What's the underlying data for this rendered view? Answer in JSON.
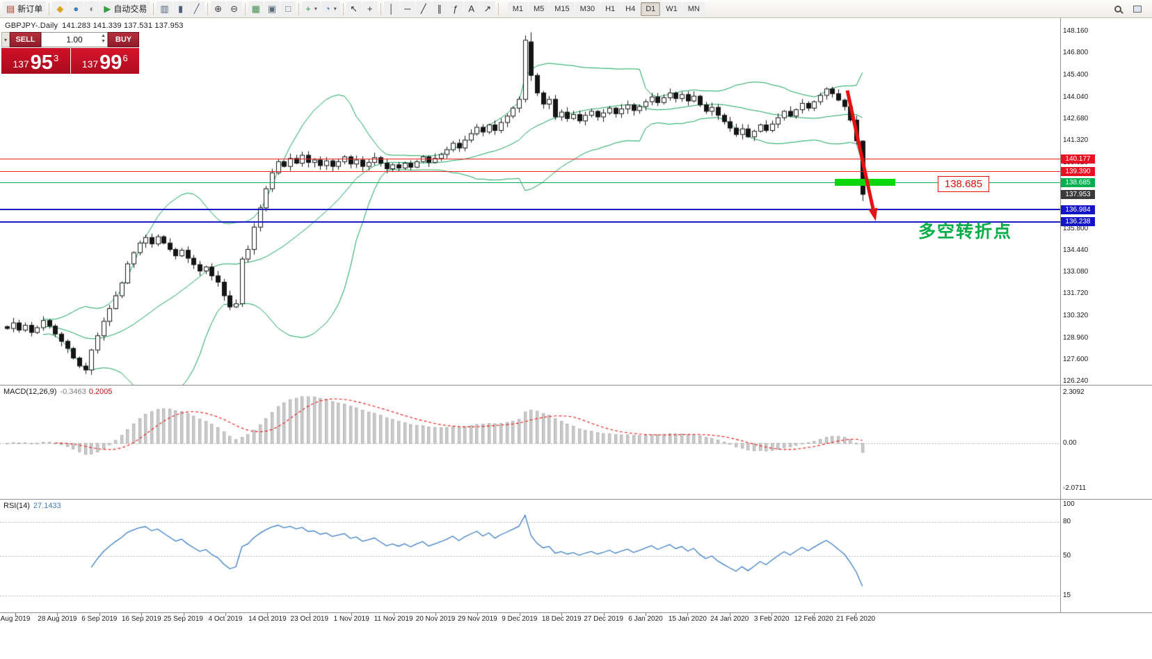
{
  "toolbar": {
    "items": [
      {
        "name": "new-order",
        "label": "新订单",
        "glyph": "▤",
        "color": "#b03a2e"
      },
      {
        "name": "separator"
      },
      {
        "name": "metaeditor",
        "glyph": "◆",
        "color": "#d8a51d"
      },
      {
        "name": "market-watch",
        "glyph": "●",
        "color": "#3f7fbf"
      },
      {
        "name": "data-window",
        "glyph": "◐",
        "color": "#7f7f7f"
      },
      {
        "name": "autotrading",
        "label": "自动交易",
        "glyph": "▶",
        "color": "#2f9e3f"
      },
      {
        "name": "separator"
      },
      {
        "name": "bar-chart",
        "glyph": "▥",
        "color": "#50617a"
      },
      {
        "name": "candlestick-chart",
        "glyph": "▮",
        "color": "#50617a"
      },
      {
        "name": "line-chart",
        "glyph": "╱",
        "color": "#50617a"
      },
      {
        "name": "separator"
      },
      {
        "name": "zoom-in",
        "glyph": "⊕",
        "color": "#3c3c3c"
      },
      {
        "name": "zoom-out",
        "glyph": "⊖",
        "color": "#3c3c3c"
      },
      {
        "name": "separator"
      },
      {
        "name": "tile-windows",
        "glyph": "▦",
        "color": "#3f8f4f"
      },
      {
        "name": "auto-scroll",
        "glyph": "▣",
        "color": "#5a6a7a"
      },
      {
        "name": "chart-shift",
        "glyph": "□",
        "color": "#5a6a7a"
      },
      {
        "name": "separator"
      },
      {
        "name": "new-chart",
        "glyph": "+",
        "color": "#2f8f3f",
        "caret": true
      },
      {
        "name": "chart-profiles",
        "glyph": "◔",
        "color": "#3f7fbf",
        "caret": true
      },
      {
        "name": "separator"
      },
      {
        "name": "cursor",
        "glyph": "↖",
        "color": "#333333"
      },
      {
        "name": "crosshair",
        "glyph": "+",
        "color": "#333333"
      },
      {
        "name": "separator"
      },
      {
        "name": "vertical-line",
        "glyph": "│",
        "color": "#333333"
      },
      {
        "name": "horizontal-line",
        "glyph": "─",
        "color": "#333333"
      },
      {
        "name": "trendline",
        "glyph": "╱",
        "color": "#333333"
      },
      {
        "name": "equidistant-channel",
        "glyph": "∥",
        "color": "#333333"
      },
      {
        "name": "fibonacci",
        "glyph": "ƒ",
        "color": "#333333"
      },
      {
        "name": "text-label",
        "glyph": "A",
        "color": "#333333"
      },
      {
        "name": "arrows-tool",
        "glyph": "↗",
        "color": "#333333"
      },
      {
        "name": "separator"
      }
    ],
    "timeframes": [
      "M1",
      "M5",
      "M15",
      "M30",
      "H1",
      "H4",
      "D1",
      "W1",
      "MN"
    ],
    "active_timeframe": "D1",
    "dropdown_caret": "▾"
  },
  "chart": {
    "symbol_title": "GBPJPY-.Daily",
    "ohlc_values": "141.283 141.339 137.531 137.953"
  },
  "trade_panel": {
    "collapse_icon": "▾",
    "sell_label": "SELL",
    "buy_label": "BUY",
    "volume": "1.00",
    "sell_price": {
      "main": "137",
      "big": "95",
      "sup": "3"
    },
    "buy_price": {
      "main": "137",
      "big": "99",
      "sup": "6"
    }
  },
  "price_axis": {
    "ticks": [
      148.16,
      146.8,
      145.4,
      144.04,
      142.68,
      141.32,
      139.92,
      135.8,
      134.44,
      133.08,
      131.72,
      130.32,
      128.96,
      127.6,
      126.24
    ]
  },
  "levels": [
    {
      "price": 140.177,
      "label": "140.177",
      "line_color": "#ee2222",
      "line_width": 1,
      "box_color": "#e81022"
    },
    {
      "price": 139.39,
      "label": "139.390",
      "line_color": "#ee2222",
      "line_width": 1,
      "box_color": "#e81022"
    },
    {
      "price": 138.685,
      "label": "138.685",
      "line_color": "#00b050",
      "line_width": 1,
      "box_color": "#00b050"
    },
    {
      "price": 137.953,
      "label": "137.953",
      "line_color": null,
      "line_width": 0,
      "box_color": "#3a3a3a"
    },
    {
      "price": 136.984,
      "label": "136.984",
      "line_color": "#1a1ac8",
      "line_width": 2,
      "box_color": "#1515c8"
    },
    {
      "price": 136.238,
      "label": "136.238",
      "line_color": "#1a1ac8",
      "line_width": 2,
      "box_color": "#1515c8"
    }
  ],
  "annotations": {
    "price_callout": "138.685",
    "turning_point_text": "多空转折点"
  },
  "macd": {
    "name": "MACD(12,26,9)",
    "value_main": "-0.3463",
    "value_signal": "0.2005",
    "axis": [
      {
        "value": 2.3092,
        "label": "2.3092"
      },
      {
        "value": 0,
        "label": "0.00"
      },
      {
        "value": -2.0711,
        "label": "-2.0711"
      }
    ]
  },
  "rsi": {
    "name": "RSI(14)",
    "value": "27.1433",
    "axis": [
      {
        "value": 100,
        "label": "100"
      },
      {
        "value": 80,
        "label": "80"
      },
      {
        "value": 50,
        "label": "50"
      },
      {
        "value": 15,
        "label": "15"
      }
    ],
    "levels": [
      80,
      50,
      15
    ]
  },
  "time_axis": {
    "labels": [
      "Aug 2019",
      "28 Aug 2019",
      "6 Sep 2019",
      "16 Sep 2019",
      "25 Sep 2019",
      "4 Oct 2019",
      "14 Oct 2019",
      "23 Oct 2019",
      "1 Nov 2019",
      "11 Nov 2019",
      "20 Nov 2019",
      "29 Nov 2019",
      "9 Dec 2019",
      "18 Dec 2019",
      "27 Dec 2019",
      "6 Jan 2020",
      "15 Jan 2020",
      "24 Jan 2020",
      "3 Feb 2020",
      "12 Feb 2020",
      "21 Feb 2020"
    ]
  },
  "colors": {
    "bollinger": "#12a257",
    "candle_up": "#ffffff",
    "candle_down": "#151515",
    "candle_border": "#151515",
    "macd_histogram": "#cccccc",
    "macd_histogram_border": "#a8a8a8",
    "macd_signal": "#ee1111",
    "rsi_line": "#3b7dc4",
    "grid_dotted": "#b5b5b5",
    "highlight_green": "#0bd50b",
    "arrow_red": "#e81010",
    "callout_red": "#e80b0b",
    "annotation_green": "#00ad46"
  },
  "chart_data": {
    "type": "candlestick",
    "symbol": "GBPJPY-",
    "timeframe": "Daily",
    "y_range": [
      126.24,
      148.16
    ],
    "last_candle_ohlc": [
      141.283,
      141.339,
      137.531,
      137.953
    ],
    "closes": [
      129.55,
      129.9,
      129.45,
      129.75,
      129.3,
      129.6,
      130.05,
      129.7,
      129.2,
      128.75,
      128.3,
      127.7,
      127.2,
      126.95,
      128.2,
      129.1,
      130.0,
      130.8,
      131.6,
      132.4,
      133.6,
      134.3,
      134.9,
      135.25,
      134.85,
      135.3,
      134.9,
      134.5,
      134.1,
      134.45,
      133.95,
      133.55,
      133.15,
      133.4,
      132.85,
      132.45,
      131.6,
      130.9,
      131.1,
      133.9,
      134.5,
      135.9,
      137.1,
      138.3,
      139.3,
      140.0,
      139.7,
      140.2,
      139.9,
      140.4,
      139.95,
      140.1,
      139.75,
      140.05,
      139.7,
      140.0,
      140.3,
      139.85,
      140.1,
      139.7,
      139.95,
      140.25,
      139.9,
      139.55,
      139.8,
      139.6,
      139.9,
      139.65,
      140.0,
      140.3,
      139.95,
      140.2,
      140.45,
      140.75,
      141.15,
      140.85,
      141.35,
      141.75,
      142.15,
      141.85,
      142.3,
      141.95,
      142.45,
      142.85,
      143.35,
      143.9,
      147.6,
      145.4,
      144.3,
      143.6,
      143.9,
      142.8,
      143.1,
      142.7,
      142.95,
      142.55,
      142.9,
      143.15,
      142.8,
      143.05,
      143.35,
      143.0,
      143.3,
      143.55,
      143.2,
      143.45,
      143.75,
      144.05,
      143.7,
      144.0,
      144.3,
      143.95,
      144.2,
      143.8,
      144.1,
      143.55,
      143.15,
      143.4,
      142.9,
      142.5,
      142.1,
      141.7,
      142.05,
      141.55,
      141.9,
      142.3,
      141.95,
      142.35,
      142.75,
      143.15,
      142.85,
      143.25,
      143.65,
      143.35,
      143.75,
      144.15,
      144.55,
      144.25,
      143.85,
      143.45,
      142.6,
      141.3,
      137.953
    ],
    "special_candles": {
      "13": [
        127.2,
        127.4,
        126.7,
        126.95
      ],
      "39": [
        131.1,
        134.05,
        130.9,
        133.9
      ],
      "86": [
        143.9,
        147.9,
        143.7,
        147.6
      ],
      "87": [
        147.5,
        148.1,
        145.05,
        145.4
      ],
      "142": [
        141.283,
        141.339,
        137.531,
        137.953
      ]
    },
    "indicators": {
      "bollinger": {
        "period": 20,
        "deviation": 2
      },
      "macd": {
        "fast": 12,
        "slow": 26,
        "signal": 9,
        "current_main": -0.3463,
        "current_signal": 0.2005
      },
      "rsi": {
        "period": 14,
        "current": 27.1433
      }
    }
  }
}
